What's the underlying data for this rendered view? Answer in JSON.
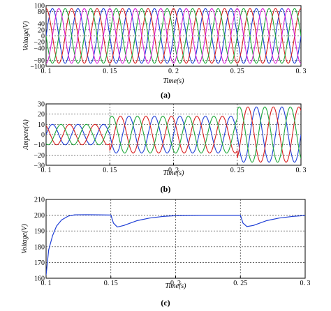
{
  "chart_data": [
    {
      "type": "line",
      "panel_label": "(a)",
      "xlabel": "Time(s)",
      "ylabel": "Voltage(V)",
      "xlim": [
        0.1,
        0.3
      ],
      "ylim": [
        -100,
        100
      ],
      "xticks": [
        "0. 1",
        "0. 15",
        "0. 2",
        "0. 25",
        "0. 3"
      ],
      "yticks": [
        "100",
        "80",
        "40",
        "20",
        "0",
        "−20",
        "−40",
        "−80",
        "−100"
      ],
      "grid": true,
      "colors": [
        "#1f3fd6",
        "#d81f1f",
        "#1fa83a",
        "#d81fd8"
      ],
      "series_desc": "four-phase sinusoidal voltages, amplitude 90 V, 50 Hz, 90° apart",
      "amplitude": 90,
      "frequency_hz": 50,
      "phases_deg": [
        0,
        90,
        180,
        270
      ]
    },
    {
      "type": "line",
      "panel_label": "(b)",
      "xlabel": "Time(s)",
      "ylabel": "Ampere(A)",
      "xlim": [
        0.1,
        0.3
      ],
      "ylim": [
        -30,
        30
      ],
      "xticks": [
        "0. 1",
        "0. 15",
        "0. 2",
        "0. 25",
        "0. 3"
      ],
      "yticks": [
        "30",
        "20",
        "10",
        "0",
        "−10",
        "−20",
        "−30"
      ],
      "grid": true,
      "colors": [
        "#1f3fd6",
        "#d81f1f",
        "#1fa83a"
      ],
      "amplitude_by_interval": [
        {
          "t": [
            0.1,
            0.15
          ],
          "amp": 10
        },
        {
          "t": [
            0.15,
            0.25
          ],
          "amp": 18
        },
        {
          "t": [
            0.25,
            0.3
          ],
          "amp": 27
        }
      ],
      "frequency_hz": 50,
      "phases_deg": [
        0,
        120,
        240
      ]
    },
    {
      "type": "line",
      "panel_label": "(c)",
      "xlabel": "Time(s)",
      "ylabel": "Voltage(V)",
      "xlim": [
        0.1,
        0.3
      ],
      "ylim": [
        160,
        210
      ],
      "xticks": [
        "0. 1",
        "0. 15",
        "0. 2",
        "0. 25",
        "0. 3"
      ],
      "yticks": [
        "210",
        "200",
        "190",
        "180",
        "170",
        "160"
      ],
      "grid": true,
      "colors": [
        "#1f3fd6"
      ],
      "series": [
        {
          "x": [
            0.1,
            0.102,
            0.105,
            0.108,
            0.112,
            0.117,
            0.122,
            0.13,
            0.14,
            0.15,
            0.152,
            0.155,
            0.16,
            0.17,
            0.18,
            0.19,
            0.2,
            0.22,
            0.25,
            0.252,
            0.255,
            0.26,
            0.27,
            0.28,
            0.29,
            0.3
          ],
          "y": [
            162,
            178,
            187,
            193,
            197,
            199.4,
            200.2,
            200.3,
            200.2,
            200.1,
            195,
            192.5,
            193.5,
            196.5,
            198.2,
            199.2,
            199.7,
            200,
            200,
            195,
            192.8,
            193.5,
            196.5,
            198.2,
            199.2,
            199.8
          ]
        }
      ]
    }
  ]
}
